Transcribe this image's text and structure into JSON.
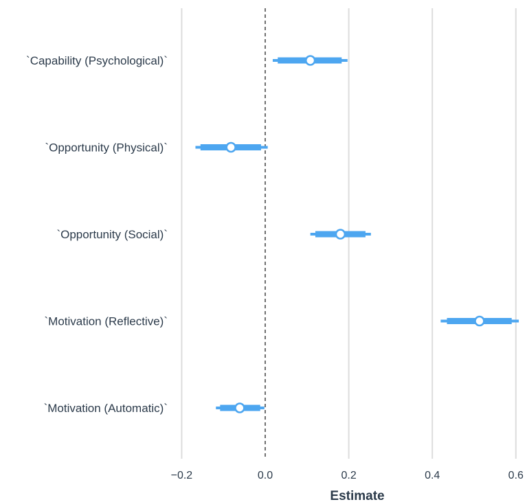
{
  "chart_data": {
    "type": "interval",
    "title": "",
    "xlabel": "Estimate",
    "ylabel": "",
    "xlim": [
      -0.2,
      0.6
    ],
    "x_ticks": [
      -0.2,
      0.0,
      0.2,
      0.4,
      0.6
    ],
    "x_tick_labels": [
      "−0.2",
      "0.0",
      "0.2",
      "0.4",
      "0.6"
    ],
    "grid": "vertical",
    "reference_line": 0,
    "color": "#4da6f0",
    "categories": [
      "`Capability (Psychological)`",
      "`Opportunity (Physical)`",
      "`Opportunity (Social)`",
      "`Motivation (Reflective)`",
      "`Motivation (Automatic)`"
    ],
    "estimates": [
      {
        "point": 0.108,
        "inner": [
          0.03,
          0.183
        ],
        "outer": [
          0.018,
          0.197
        ]
      },
      {
        "point": -0.082,
        "inner": [
          -0.155,
          -0.01
        ],
        "outer": [
          -0.167,
          0.006
        ]
      },
      {
        "point": 0.18,
        "inner": [
          0.12,
          0.24
        ],
        "outer": [
          0.108,
          0.253
        ]
      },
      {
        "point": 0.513,
        "inner": [
          0.435,
          0.59
        ],
        "outer": [
          0.42,
          0.607
        ]
      },
      {
        "point": -0.061,
        "inner": [
          -0.108,
          -0.012
        ],
        "outer": [
          -0.118,
          -0.002
        ]
      }
    ]
  }
}
